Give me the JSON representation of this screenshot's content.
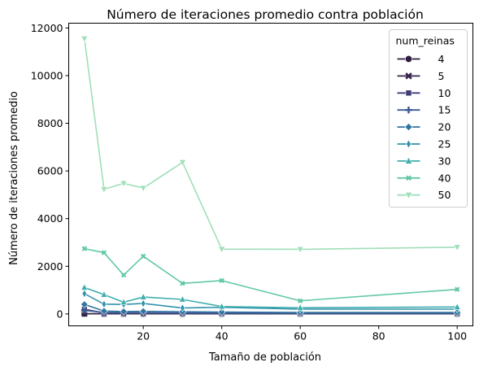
{
  "chart_data": {
    "type": "line",
    "title": "Número de iteraciones promedio contra población",
    "xlabel": "Tamaño de población",
    "ylabel": "Número de iteraciones promedio",
    "xlim": [
      1,
      104
    ],
    "ylim": [
      -500,
      12200
    ],
    "xticks": [
      20,
      40,
      60,
      80,
      100
    ],
    "yticks": [
      0,
      2000,
      4000,
      6000,
      8000,
      10000,
      12000
    ],
    "x": [
      5,
      10,
      15,
      20,
      30,
      40,
      60,
      100
    ],
    "grid": false,
    "legend": {
      "title": "num_reinas",
      "placement": "top-right"
    },
    "series": [
      {
        "name": "4",
        "color": "#2c1e3d",
        "marker": "circle",
        "values": [
          8,
          5,
          5,
          5,
          5,
          5,
          5,
          5
        ]
      },
      {
        "name": "5",
        "color": "#35264a",
        "marker": "x",
        "values": [
          10,
          6,
          6,
          6,
          6,
          6,
          6,
          6
        ]
      },
      {
        "name": "10",
        "color": "#3e3c75",
        "marker": "square",
        "values": [
          200,
          40,
          30,
          30,
          25,
          20,
          15,
          15
        ]
      },
      {
        "name": "15",
        "color": "#3a5a94",
        "marker": "plus",
        "values": [
          150,
          60,
          50,
          50,
          40,
          40,
          30,
          30
        ]
      },
      {
        "name": "20",
        "color": "#3274a0",
        "marker": "diamond",
        "values": [
          400,
          120,
          100,
          110,
          90,
          80,
          60,
          60
        ]
      },
      {
        "name": "25",
        "color": "#3293ac",
        "marker": "thin-diamond",
        "values": [
          850,
          410,
          400,
          440,
          250,
          280,
          200,
          200
        ]
      },
      {
        "name": "30",
        "color": "#3faead",
        "marker": "triangle-up",
        "values": [
          1110,
          810,
          490,
          710,
          610,
          310,
          260,
          290
        ]
      },
      {
        "name": "40",
        "color": "#61c8a5",
        "marker": "x-small",
        "values": [
          2740,
          2570,
          1630,
          2420,
          1280,
          1400,
          550,
          1030
        ]
      },
      {
        "name": "50",
        "color": "#a0dfb9",
        "marker": "triangle-down",
        "values": [
          11550,
          5230,
          5480,
          5280,
          6360,
          2720,
          2710,
          2800
        ]
      }
    ]
  }
}
